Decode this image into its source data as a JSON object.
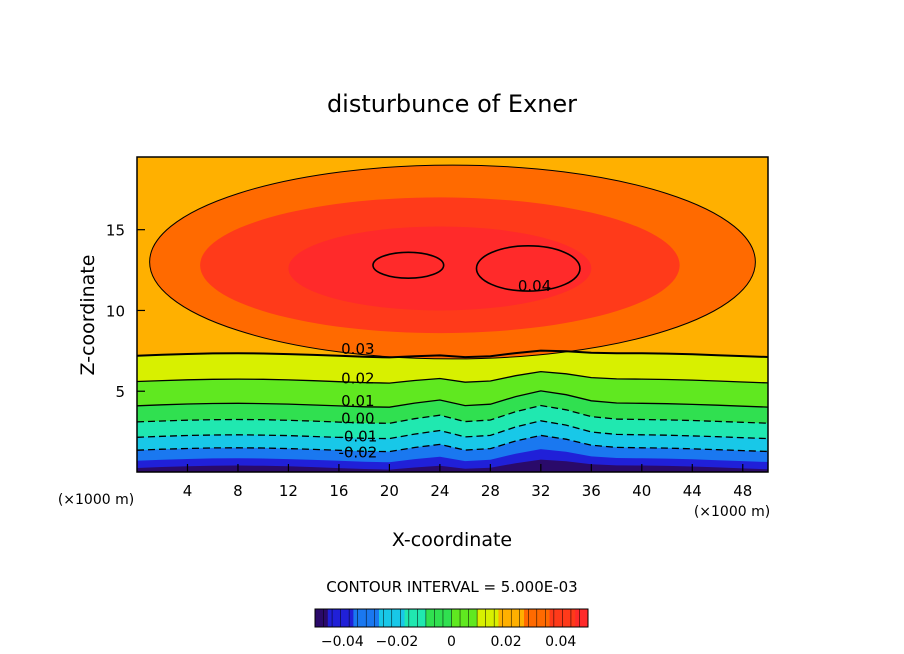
{
  "chart_data": {
    "type": "contour",
    "title": "disturbunce of Exner",
    "xlabel": "X-coordinate",
    "ylabel": "Z-coordinate",
    "x_unit": "(×1000 m)",
    "z_unit": "(×1000 m)",
    "xlim": [
      0,
      50
    ],
    "ylim": [
      0,
      19.5
    ],
    "x_ticks": [
      4,
      8,
      12,
      16,
      20,
      24,
      28,
      32,
      36,
      40,
      44,
      48
    ],
    "y_ticks": [
      5,
      10,
      15
    ],
    "contour_interval_text": "CONTOUR INTERVAL = 5.000E-03",
    "contour_labels": [
      {
        "text": "0.04",
        "x": 31.5,
        "z": 11.5
      },
      {
        "text": "0.03",
        "x": 17.5,
        "z": 7.6
      },
      {
        "text": "0.02",
        "x": 17.5,
        "z": 5.8
      },
      {
        "text": "0.01",
        "x": 17.5,
        "z": 4.4
      },
      {
        "text": "0.00",
        "x": 17.5,
        "z": 3.3
      },
      {
        "text": "-0.01",
        "x": 17.5,
        "z": 2.2
      },
      {
        "text": "-0.02",
        "x": 17.5,
        "z": 1.2
      }
    ],
    "colorbar": {
      "min": -0.05,
      "max": 0.05,
      "tick_labels": [
        "−0.04",
        "−0.02",
        "0",
        "0.02",
        "0.04"
      ],
      "tick_values": [
        -0.04,
        -0.02,
        0,
        0.02,
        0.04
      ]
    },
    "colors": {
      "c_-0.05": "#2a0a6a",
      "c_-0.04": "#2020d8",
      "c_-0.03": "#1a78f0",
      "c_-0.02": "#18c8e8",
      "c_-0.01": "#20e8b0",
      "c_0.00": "#30e050",
      "c_0.01": "#60e820",
      "c_0.02": "#d8f000",
      "c_0.03": "#ffb000",
      "c_0.035": "#ff6a00",
      "c_0.04": "#ff3a1a",
      "c_0.05": "#ff2a2a"
    }
  }
}
